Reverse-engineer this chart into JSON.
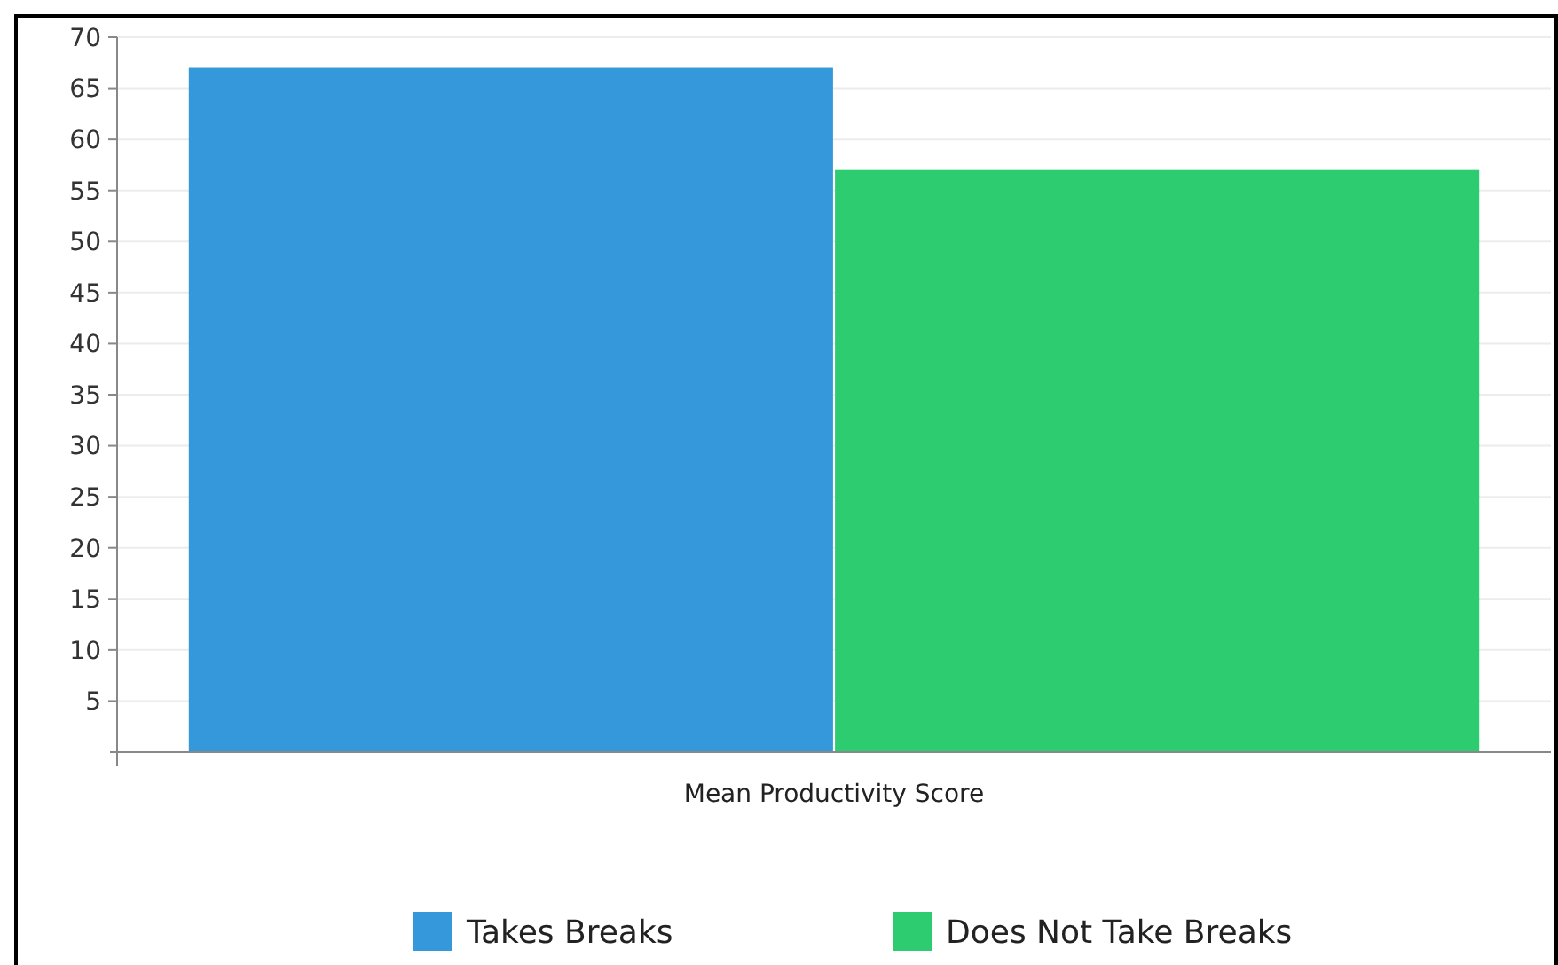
{
  "chart_data": {
    "type": "bar",
    "categories": [
      "Mean Productivity Score"
    ],
    "series": [
      {
        "name": "Takes Breaks",
        "color": "#3498db",
        "values": [
          67
        ]
      },
      {
        "name": "Does Not Take Breaks",
        "color": "#2ecc71",
        "values": [
          57
        ]
      }
    ],
    "ylim": [
      0,
      70
    ],
    "yticks": [
      5,
      10,
      15,
      20,
      25,
      30,
      35,
      40,
      45,
      50,
      55,
      60,
      65,
      70
    ],
    "grid": "y",
    "legend": "bottom"
  }
}
